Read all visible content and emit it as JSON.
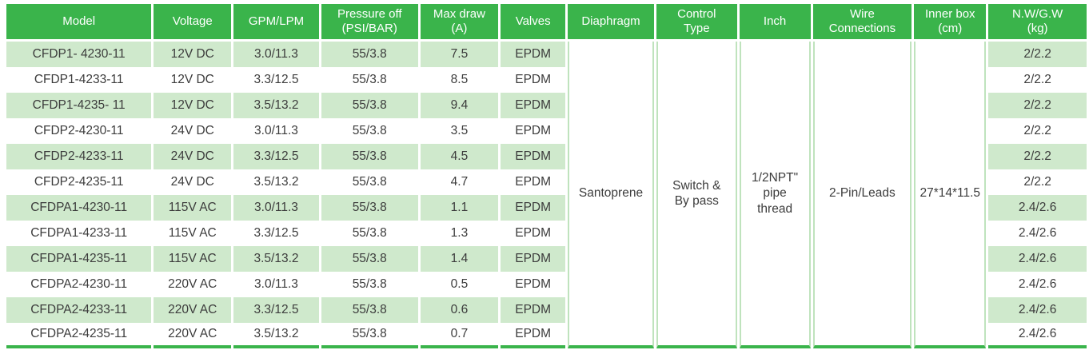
{
  "table": {
    "colors": {
      "header_green": "#3ab44b",
      "stripe_green": "#cfe9cc",
      "divider_green": "#bfe3bd",
      "body_text": "#3c3c3c",
      "header_text": "#ffffff"
    },
    "columns": [
      {
        "key": "model",
        "label": "Model"
      },
      {
        "key": "voltage",
        "label": "Voltage"
      },
      {
        "key": "gpm_lpm",
        "label": "GPM/LPM"
      },
      {
        "key": "pressure_off",
        "label": "Pressure off\n(PSI/BAR)"
      },
      {
        "key": "max_draw",
        "label": "Max draw\n(A)"
      },
      {
        "key": "valves",
        "label": "Valves"
      },
      {
        "key": "diaphragm",
        "label": "Diaphragm"
      },
      {
        "key": "control_type",
        "label": "Control\nType"
      },
      {
        "key": "inch",
        "label": "Inch"
      },
      {
        "key": "wire_connections",
        "label": "Wire\nConnections"
      },
      {
        "key": "inner_box",
        "label": "Inner box\n(cm)"
      },
      {
        "key": "nw_gw",
        "label": "N.W/G.W\n(kg)"
      }
    ],
    "rows": [
      {
        "model": "CFDP1- 4230-11",
        "voltage": "12V DC",
        "gpm_lpm": "3.0/11.3",
        "pressure_off": "55/3.8",
        "max_draw": "7.5",
        "valves": "EPDM",
        "nw_gw": "2/2.2"
      },
      {
        "model": "CFDP1-4233-11",
        "voltage": "12V DC",
        "gpm_lpm": "3.3/12.5",
        "pressure_off": "55/3.8",
        "max_draw": "8.5",
        "valves": "EPDM",
        "nw_gw": "2/2.2"
      },
      {
        "model": "CFDP1-4235- 11",
        "voltage": "12V DC",
        "gpm_lpm": "3.5/13.2",
        "pressure_off": "55/3.8",
        "max_draw": "9.4",
        "valves": "EPDM",
        "nw_gw": "2/2.2"
      },
      {
        "model": "CFDP2-4230-11",
        "voltage": "24V DC",
        "gpm_lpm": "3.0/11.3",
        "pressure_off": "55/3.8",
        "max_draw": "3.5",
        "valves": "EPDM",
        "nw_gw": "2/2.2"
      },
      {
        "model": "CFDP2-4233-11",
        "voltage": "24V DC",
        "gpm_lpm": "3.3/12.5",
        "pressure_off": "55/3.8",
        "max_draw": "4.5",
        "valves": "EPDM",
        "nw_gw": "2/2.2"
      },
      {
        "model": "CFDP2-4235-11",
        "voltage": "24V DC",
        "gpm_lpm": "3.5/13.2",
        "pressure_off": "55/3.8",
        "max_draw": "4.7",
        "valves": "EPDM",
        "nw_gw": "2/2.2"
      },
      {
        "model": "CFDPA1-4230-11",
        "voltage": "115V AC",
        "gpm_lpm": "3.0/11.3",
        "pressure_off": "55/3.8",
        "max_draw": "1.1",
        "valves": "EPDM",
        "nw_gw": "2.4/2.6"
      },
      {
        "model": "CFDPA1-4233-11",
        "voltage": "115V AC",
        "gpm_lpm": "3.3/12.5",
        "pressure_off": "55/3.8",
        "max_draw": "1.3",
        "valves": "EPDM",
        "nw_gw": "2.4/2.6"
      },
      {
        "model": "CFDPA1-4235-11",
        "voltage": "115V AC",
        "gpm_lpm": "3.5/13.2",
        "pressure_off": "55/3.8",
        "max_draw": "1.4",
        "valves": "EPDM",
        "nw_gw": "2.4/2.6"
      },
      {
        "model": "CFDPA2-4230-11",
        "voltage": "220V AC",
        "gpm_lpm": "3.0/11.3",
        "pressure_off": "55/3.8",
        "max_draw": "0.5",
        "valves": "EPDM",
        "nw_gw": "2.4/2.6"
      },
      {
        "model": "CFDPA2-4233-11",
        "voltage": "220V AC",
        "gpm_lpm": "3.3/12.5",
        "pressure_off": "55/3.8",
        "max_draw": "0.6",
        "valves": "EPDM",
        "nw_gw": "2.4/2.6"
      },
      {
        "model": "CFDPA2-4235-11",
        "voltage": "220V AC",
        "gpm_lpm": "3.5/13.2",
        "pressure_off": "55/3.8",
        "max_draw": "0.7",
        "valves": "EPDM",
        "nw_gw": "2.4/2.6"
      }
    ],
    "merged": {
      "diaphragm": "Santoprene",
      "control_type": "Switch &\nBy pass",
      "inch": "1/2NPT\"\npipe\nthread",
      "wire_connections": "2-Pin/Leads",
      "inner_box": "27*14*11.5"
    }
  }
}
